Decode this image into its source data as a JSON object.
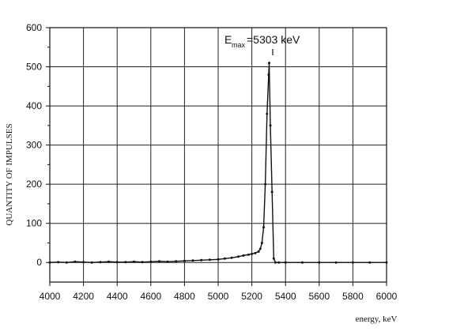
{
  "chart_data": {
    "type": "line",
    "xlabel": "energy, keV",
    "ylabel": "QUANTITY OF IMPULSES",
    "xlim": [
      4000,
      6000
    ],
    "ylim": [
      -50,
      600
    ],
    "x_ticks": [
      4000,
      4200,
      4400,
      4600,
      4800,
      5000,
      5200,
      5400,
      5600,
      5800,
      6000
    ],
    "y_ticks": [
      0,
      100,
      200,
      300,
      400,
      500,
      600
    ],
    "x_tick_labels": [
      "4000",
      "4200",
      "4400",
      "4600",
      "4800",
      "5000",
      "5200",
      "5400",
      "5600",
      "5800",
      "6000"
    ],
    "y_tick_labels": [
      "0",
      "100",
      "200",
      "300",
      "400",
      "500",
      "600"
    ],
    "grid": true,
    "annotation": {
      "main": "E",
      "subscript": "max",
      "value": "=5303 keV",
      "x": 5303,
      "y": 510
    },
    "series": [
      {
        "x": [
          4000,
          4050,
          4100,
          4150,
          4200,
          4250,
          4300,
          4350,
          4400,
          4450,
          4500,
          4550,
          4600,
          4650,
          4700,
          4750,
          4800,
          4850,
          4900,
          4950,
          5000,
          5040,
          5080,
          5120,
          5150,
          5180,
          5200,
          5220,
          5240,
          5250,
          5260,
          5270,
          5280,
          5290,
          5300,
          5303,
          5310,
          5320,
          5330,
          5340,
          5360,
          5400,
          5500,
          5600,
          5700,
          5800,
          5900,
          6000
        ],
        "values": [
          0,
          1,
          0,
          2,
          1,
          0,
          1,
          2,
          1,
          1,
          2,
          1,
          2,
          3,
          2,
          3,
          4,
          5,
          6,
          7,
          8,
          10,
          12,
          15,
          18,
          20,
          22,
          24,
          28,
          35,
          50,
          90,
          200,
          380,
          480,
          510,
          350,
          180,
          10,
          0,
          0,
          0,
          0,
          0,
          0,
          0,
          0,
          0
        ]
      }
    ]
  }
}
